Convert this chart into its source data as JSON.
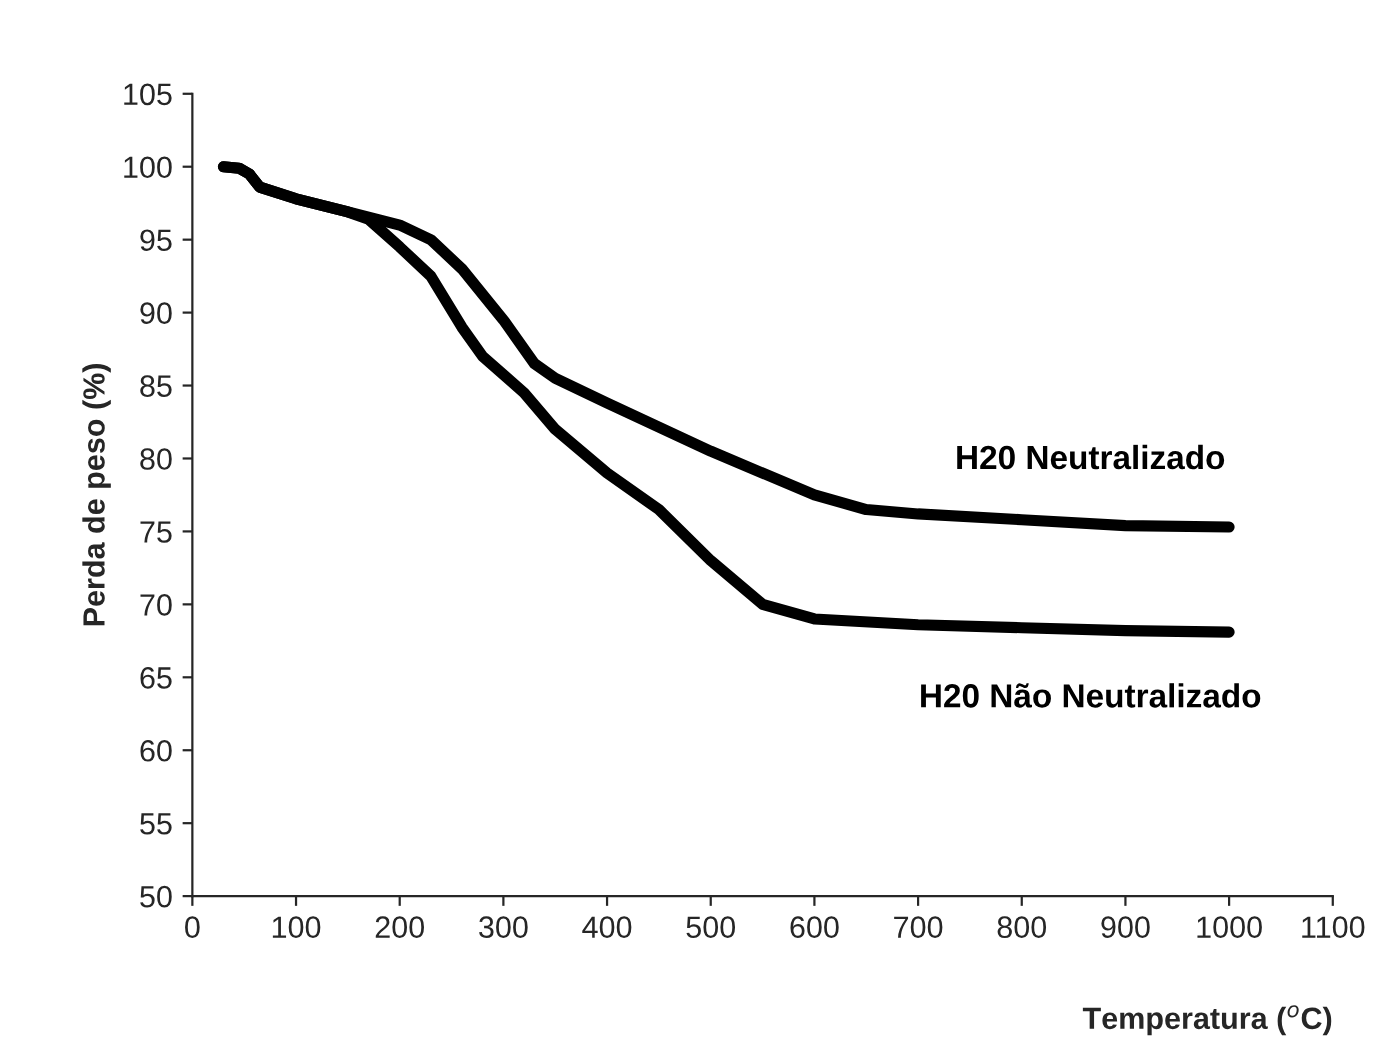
{
  "chart_data": {
    "type": "line",
    "xlabel": "Temperatura ($^{o}$C)",
    "ylabel": "Perda de peso (%)",
    "xlim": [
      0,
      1100
    ],
    "ylim": [
      50,
      105
    ],
    "xticks": [
      0,
      100,
      200,
      300,
      400,
      500,
      600,
      700,
      800,
      900,
      1000,
      1100
    ],
    "yticks": [
      50,
      55,
      60,
      65,
      70,
      75,
      80,
      85,
      90,
      95,
      100,
      105
    ],
    "grid": false,
    "legend": false,
    "series": [
      {
        "name": "H20 Neutralizado",
        "color": "#000000",
        "x": [
          30,
          45,
          55,
          65,
          100,
          150,
          200,
          230,
          260,
          300,
          330,
          350,
          400,
          500,
          600,
          650,
          700,
          800,
          900,
          1000
        ],
        "values": [
          100,
          99.9,
          99.5,
          98.6,
          97.8,
          96.9,
          96,
          95,
          93,
          89.5,
          86.5,
          85.5,
          83.8,
          80.5,
          77.5,
          76.5,
          76.2,
          75.8,
          75.4,
          75.3
        ]
      },
      {
        "name": "H20 Não Neutralizado",
        "color": "#000000",
        "x": [
          30,
          45,
          55,
          65,
          100,
          150,
          170,
          200,
          230,
          260,
          280,
          320,
          350,
          400,
          450,
          500,
          550,
          600,
          700,
          800,
          900,
          1000
        ],
        "values": [
          100,
          99.9,
          99.5,
          98.6,
          97.8,
          96.9,
          96.4,
          94.5,
          92.5,
          89,
          87,
          84.5,
          82,
          79,
          76.5,
          73,
          70,
          69,
          68.6,
          68.4,
          68.2,
          68.1
        ]
      }
    ]
  }
}
